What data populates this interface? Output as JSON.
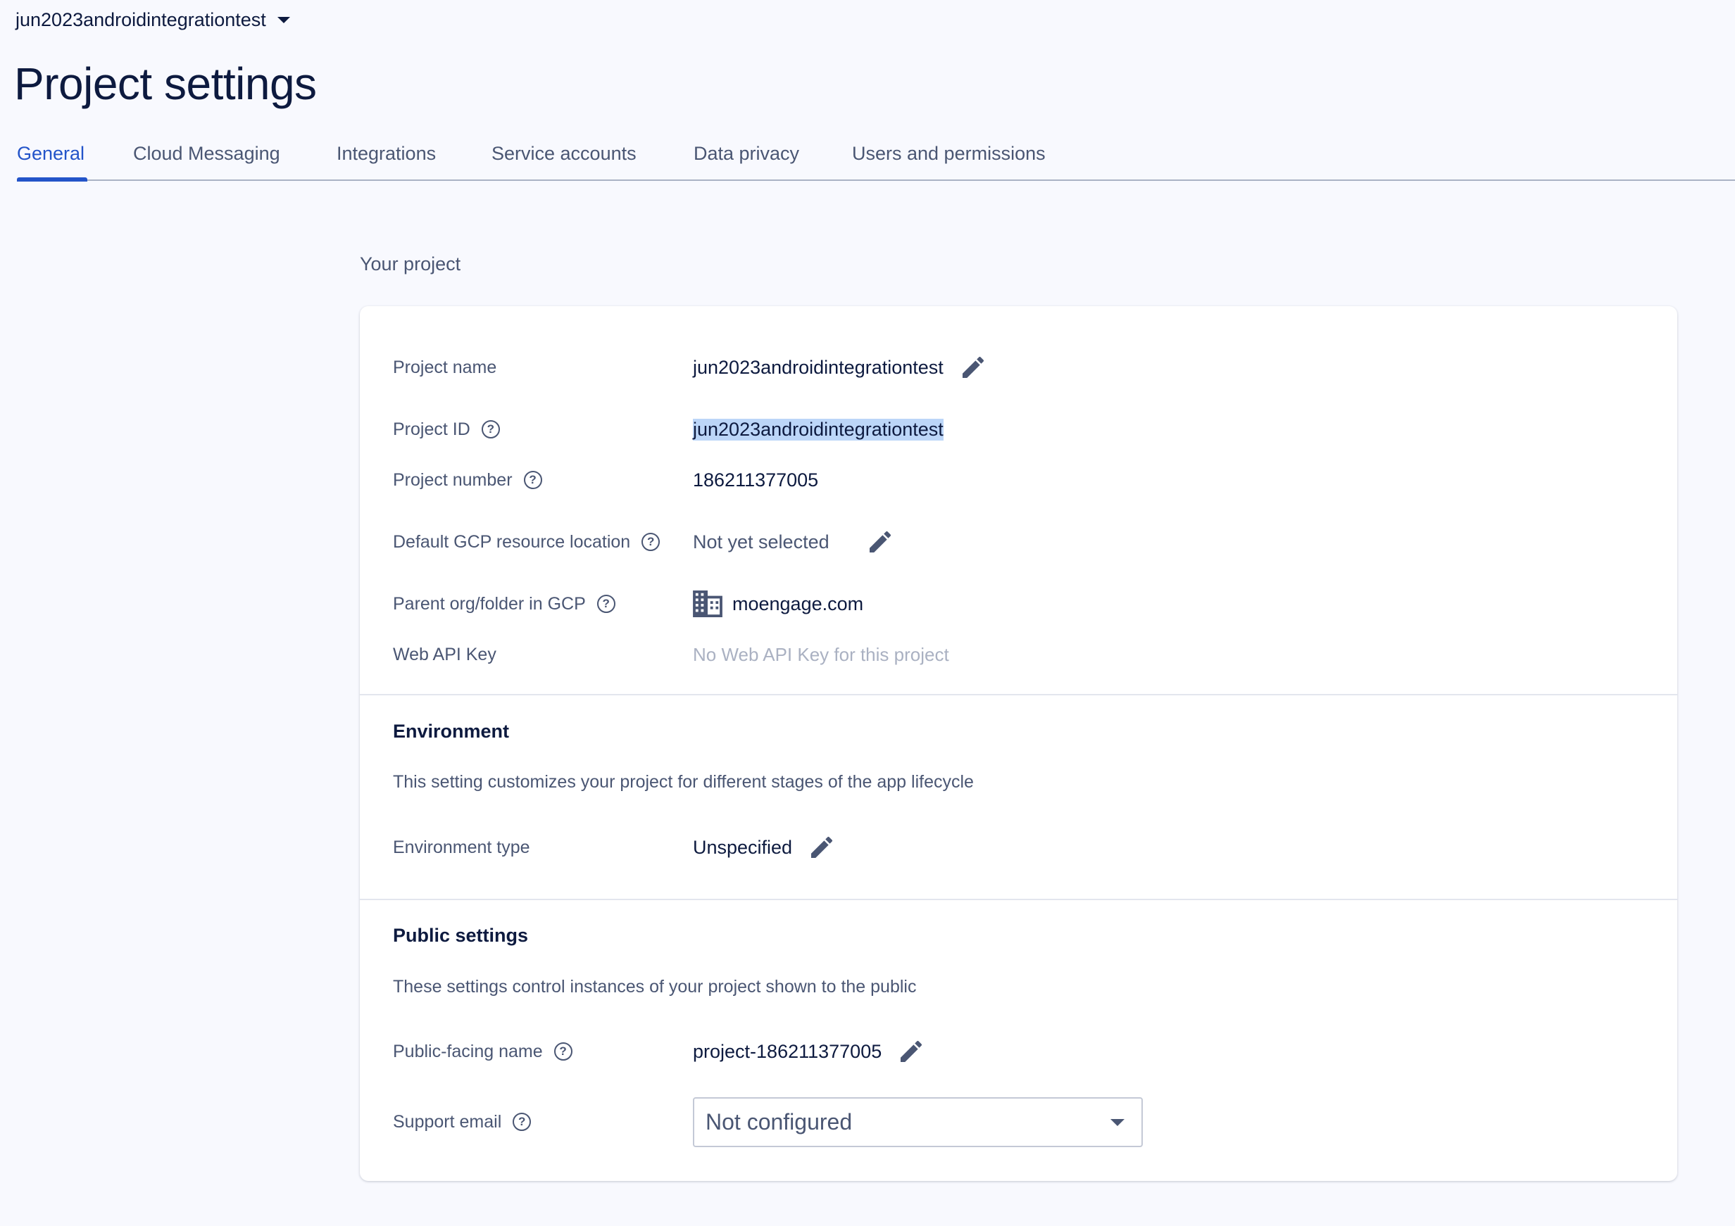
{
  "header": {
    "project_selector": "jun2023androidintegrationtest",
    "title": "Project settings"
  },
  "tabs": [
    {
      "label": "General",
      "active": true
    },
    {
      "label": "Cloud Messaging"
    },
    {
      "label": "Integrations"
    },
    {
      "label": "Service accounts"
    },
    {
      "label": "Data privacy"
    },
    {
      "label": "Users and permissions"
    }
  ],
  "section_title": "Your project",
  "project": {
    "name_label": "Project name",
    "name_value": "jun2023androidintegrationtest",
    "id_label": "Project ID",
    "id_value": "jun2023androidintegrationtest",
    "number_label": "Project number",
    "number_value": "186211377005",
    "location_label": "Default GCP resource location",
    "location_value": "Not yet selected",
    "parent_label": "Parent org/folder in GCP",
    "parent_value": "moengage.com",
    "apikey_label": "Web API Key",
    "apikey_value": "No Web API Key for this project"
  },
  "environment": {
    "heading": "Environment",
    "description": "This setting customizes your project for different stages of the app lifecycle",
    "type_label": "Environment type",
    "type_value": "Unspecified"
  },
  "public": {
    "heading": "Public settings",
    "description": "These settings control instances of your project shown to the public",
    "name_label": "Public-facing name",
    "name_value": "project-186211377005",
    "email_label": "Support email",
    "email_value": "Not configured"
  },
  "colors": {
    "accent": "#2354c9",
    "highlight": "#bcd6f8"
  }
}
